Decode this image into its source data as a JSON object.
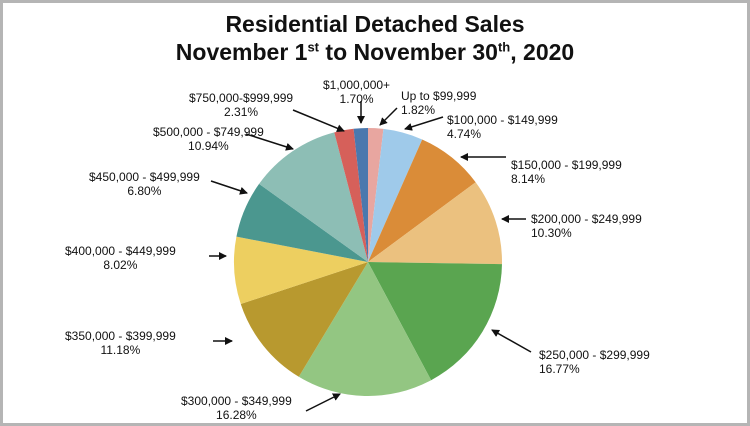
{
  "chart_data": {
    "type": "pie",
    "title_line1": "Residential Detached Sales",
    "title_line2": {
      "a": "November 1",
      "a_sup": "st",
      "b": " to November 30",
      "b_sup": "th",
      "c": ", 2020"
    },
    "legend": "none (callout labels with arrows)",
    "slices": [
      {
        "label": "Up to $99,999",
        "pct": "1.82%",
        "value": 1.82,
        "color": "#e8a6a0"
      },
      {
        "label": "$100,000 - $149,999",
        "pct": "4.74%",
        "value": 4.74,
        "color": "#9fcaea"
      },
      {
        "label": "$150,000 - $199,999",
        "pct": "8.14%",
        "value": 8.14,
        "color": "#da8c38"
      },
      {
        "label": "$200,000 - $249,999",
        "pct": "10.30%",
        "value": 10.3,
        "color": "#ebc17f"
      },
      {
        "label": "$250,000 - $299,999",
        "pct": "16.77%",
        "value": 16.77,
        "color": "#5aa550"
      },
      {
        "label": "$300,000 - $349,999",
        "pct": "16.28%",
        "value": 16.28,
        "color": "#93c682"
      },
      {
        "label": "$350,000 - $399,999",
        "pct": "11.18%",
        "value": 11.18,
        "color": "#b8992f"
      },
      {
        "label": "$400,000 - $449,999",
        "pct": "8.02%",
        "value": 8.02,
        "color": "#edcf60"
      },
      {
        "label": "$450,000 - $499,999",
        "pct": "6.80%",
        "value": 6.8,
        "color": "#4b978f"
      },
      {
        "label": "$500,000 - $749,999",
        "pct": "10.94%",
        "value": 10.94,
        "color": "#8dbeb5"
      },
      {
        "label": "$750,000-$999,999",
        "pct": "2.31%",
        "value": 2.31,
        "color": "#d6605a"
      },
      {
        "label": "$1,000,000+",
        "pct": "1.70%",
        "value": 1.7,
        "color": "#4a78ae"
      }
    ]
  }
}
